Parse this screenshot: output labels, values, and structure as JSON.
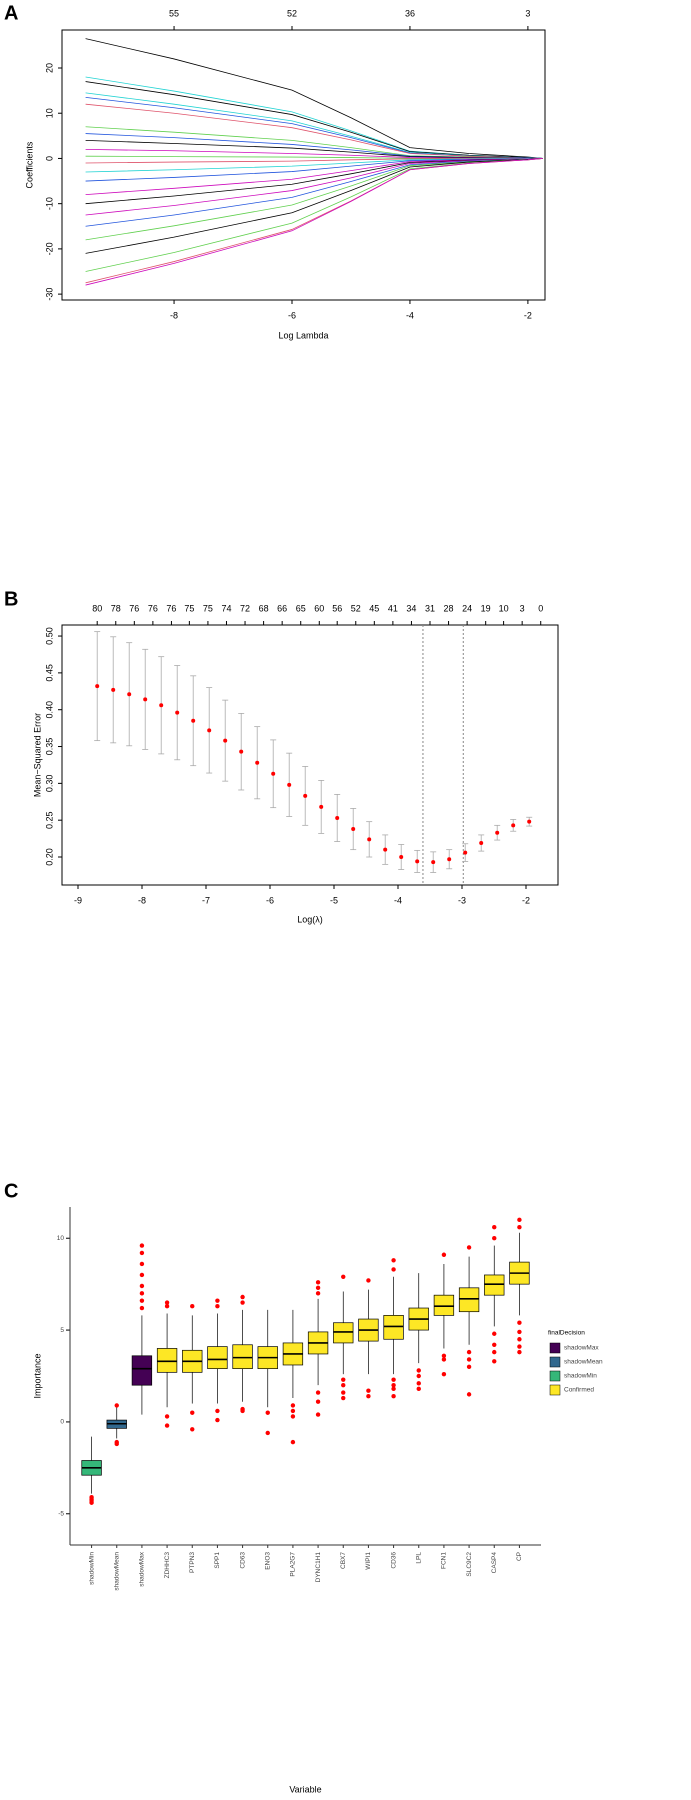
{
  "chart_data": [
    {
      "panel": "A",
      "type": "line",
      "xlabel": "Log Lambda",
      "ylabel": "Coefficients",
      "x": [
        -9.5,
        -8,
        -6,
        -5,
        -4,
        -3,
        -2,
        -1.75
      ],
      "xlim": [
        -9.9,
        -1.71
      ],
      "xticks": [
        -8,
        -6,
        -4,
        -2
      ],
      "x2ticks": [
        {
          "value": -8,
          "label": "55"
        },
        {
          "value": -6,
          "label": "52"
        },
        {
          "value": -4,
          "label": "36"
        },
        {
          "value": -2,
          "label": "3"
        }
      ],
      "ylim": [
        -31.3,
        28.4
      ],
      "yticks": [
        -30,
        -20,
        -10,
        0,
        10,
        20
      ],
      "series": [
        {
          "color": "#000000",
          "values": [
            26.5,
            22,
            15.1,
            9,
            2.4,
            1.1,
            0.3,
            0
          ]
        },
        {
          "color": "#22d3d3",
          "values": [
            18,
            14.9,
            10.3,
            6.1,
            1.6,
            0.7,
            0.2,
            0
          ]
        },
        {
          "color": "#000000",
          "values": [
            17,
            14.1,
            9.7,
            5.8,
            1.5,
            0.7,
            0.2,
            0
          ]
        },
        {
          "color": "#22d3d3",
          "values": [
            14.5,
            12,
            8.3,
            4.9,
            1.3,
            0.6,
            0.1,
            0
          ]
        },
        {
          "color": "#2255dd",
          "values": [
            13.5,
            11.2,
            7.7,
            4.6,
            1.2,
            0.5,
            0.1,
            0
          ]
        },
        {
          "color": "#df536b",
          "values": [
            12,
            10,
            6.8,
            4.1,
            1.1,
            0.5,
            0.1,
            0
          ]
        },
        {
          "color": "#61d04f",
          "values": [
            7,
            5.8,
            4,
            2.4,
            0.6,
            0.3,
            0.1,
            0
          ]
        },
        {
          "color": "#2255dd",
          "values": [
            5.5,
            4.6,
            3.1,
            1.9,
            0.5,
            0.2,
            0.1,
            0
          ]
        },
        {
          "color": "#000000",
          "values": [
            4,
            3.3,
            2.3,
            1.4,
            0.4,
            0.2,
            0,
            0
          ]
        },
        {
          "color": "#cd0bbc",
          "values": [
            2,
            1.7,
            1.1,
            0.7,
            0.2,
            0.1,
            0,
            0
          ]
        },
        {
          "color": "#61d04f",
          "values": [
            0.5,
            0.4,
            0.3,
            0.2,
            0,
            0,
            0,
            0
          ]
        },
        {
          "color": "#df536b",
          "values": [
            -1,
            -0.8,
            -0.6,
            -0.3,
            -0.1,
            0,
            0,
            0
          ]
        },
        {
          "color": "#22d3d3",
          "values": [
            -3,
            -2.5,
            -1.7,
            -1,
            -0.3,
            -0.1,
            0,
            0
          ]
        },
        {
          "color": "#2255dd",
          "values": [
            -5,
            -4.2,
            -2.9,
            -1.7,
            -0.5,
            -0.2,
            -0.1,
            0
          ]
        },
        {
          "color": "#cd0bbc",
          "values": [
            -8,
            -6.6,
            -4.6,
            -2.7,
            -0.7,
            -0.3,
            -0.1,
            0
          ]
        },
        {
          "color": "#000000",
          "values": [
            -10,
            -8.3,
            -5.7,
            -3.4,
            -0.9,
            -0.4,
            -0.1,
            0
          ]
        },
        {
          "color": "#cd0bbc",
          "values": [
            -12.5,
            -10.4,
            -7.1,
            -4.3,
            -1.1,
            -0.5,
            -0.1,
            0
          ]
        },
        {
          "color": "#2255dd",
          "values": [
            -15,
            -12.5,
            -8.6,
            -5.1,
            -1.4,
            -0.6,
            -0.2,
            0
          ]
        },
        {
          "color": "#61d04f",
          "values": [
            -18,
            -14.9,
            -10.3,
            -6.1,
            -1.6,
            -0.7,
            -0.2,
            0
          ]
        },
        {
          "color": "#000000",
          "values": [
            -21,
            -17.4,
            -12,
            -7.1,
            -1.9,
            -0.8,
            -0.2,
            0
          ]
        },
        {
          "color": "#61d04f",
          "values": [
            -25,
            -20.8,
            -14.3,
            -8.5,
            -2.3,
            -1,
            -0.3,
            0
          ]
        },
        {
          "color": "#df536b",
          "values": [
            -27.5,
            -22.8,
            -15.7,
            -9.4,
            -2.5,
            -1.1,
            -0.3,
            0
          ]
        },
        {
          "color": "#cd0bbc",
          "values": [
            -28,
            -23.2,
            -16,
            -9.5,
            -2.5,
            -1.1,
            -0.3,
            0
          ]
        }
      ]
    },
    {
      "panel": "B",
      "type": "errorbar",
      "xlabel": "Log(λ)",
      "ylabel": "Mean−Squared Error",
      "color": "#ff0000",
      "error_color": "#aaaaaa",
      "x": [
        -8.7,
        -8.45,
        -8.2,
        -7.95,
        -7.7,
        -7.45,
        -7.2,
        -6.95,
        -6.7,
        -6.45,
        -6.2,
        -5.95,
        -5.7,
        -5.45,
        -5.2,
        -4.95,
        -4.7,
        -4.45,
        -4.2,
        -3.95,
        -3.7,
        -3.45,
        -3.2,
        -2.95,
        -2.7,
        -2.45,
        -2.2,
        -1.95
      ],
      "values": [
        0.432,
        0.427,
        0.421,
        0.414,
        0.406,
        0.396,
        0.385,
        0.372,
        0.358,
        0.343,
        0.328,
        0.313,
        0.298,
        0.283,
        0.268,
        0.253,
        0.238,
        0.224,
        0.21,
        0.2,
        0.194,
        0.193,
        0.197,
        0.206,
        0.219,
        0.233,
        0.243,
        0.248
      ],
      "errors": [
        0.074,
        0.072,
        0.07,
        0.068,
        0.066,
        0.064,
        0.061,
        0.058,
        0.055,
        0.052,
        0.049,
        0.046,
        0.043,
        0.04,
        0.036,
        0.032,
        0.028,
        0.024,
        0.02,
        0.017,
        0.015,
        0.014,
        0.013,
        0.012,
        0.011,
        0.01,
        0.008,
        0.006
      ],
      "vlines": [
        -3.61,
        -2.98
      ],
      "xlim": [
        -9.25,
        -1.5
      ],
      "xticks": [
        -9,
        -8,
        -7,
        -6,
        -5,
        -4,
        -3,
        -2
      ],
      "x2ticks": [
        {
          "value": -8.7,
          "label": "80"
        },
        {
          "value": -8.41,
          "label": "78"
        },
        {
          "value": -8.12,
          "label": "76"
        },
        {
          "value": -7.83,
          "label": "76"
        },
        {
          "value": -7.54,
          "label": "76"
        },
        {
          "value": -7.26,
          "label": "75"
        },
        {
          "value": -6.97,
          "label": "75"
        },
        {
          "value": -6.68,
          "label": "74"
        },
        {
          "value": -6.39,
          "label": "72"
        },
        {
          "value": -6.1,
          "label": "68"
        },
        {
          "value": -5.81,
          "label": "66"
        },
        {
          "value": -5.52,
          "label": "65"
        },
        {
          "value": -5.23,
          "label": "60"
        },
        {
          "value": -4.95,
          "label": "56"
        },
        {
          "value": -4.66,
          "label": "52"
        },
        {
          "value": -4.37,
          "label": "45"
        },
        {
          "value": -4.08,
          "label": "41"
        },
        {
          "value": -3.79,
          "label": "34"
        },
        {
          "value": -3.5,
          "label": "31"
        },
        {
          "value": -3.21,
          "label": "28"
        },
        {
          "value": -2.92,
          "label": "24"
        },
        {
          "value": -2.63,
          "label": "19"
        },
        {
          "value": -2.35,
          "label": "10"
        },
        {
          "value": -2.06,
          "label": "3"
        },
        {
          "value": -1.77,
          "label": "0"
        }
      ],
      "ylim": [
        0.162,
        0.515
      ],
      "yticks": [
        {
          "value": 0.2,
          "label": "0.20"
        },
        0.25,
        {
          "value": 0.3,
          "label": "0.30"
        },
        0.35,
        {
          "value": 0.4,
          "label": "0.40"
        },
        0.45,
        {
          "value": 0.5,
          "label": "0.50"
        }
      ]
    },
    {
      "panel": "C",
      "type": "box",
      "xlabel": "Variable",
      "ylabel": "Importance",
      "outlier_color": "#ff0000",
      "ylim": [
        -6.7,
        11.7
      ],
      "yticks": [
        -5,
        0,
        5,
        10
      ],
      "categories": [
        "shadowMin",
        "shadowMean",
        "shadowMax",
        "ZDHHC3",
        "PTPN3",
        "SPP1",
        "CD63",
        "ENO3",
        "PLA2G7",
        "DYNC1H1",
        "CBX7",
        "WIPI1",
        "CD36",
        "LPL",
        "FCN1",
        "SLC9C2",
        "CASP4",
        "CP"
      ],
      "box_colors": [
        "#35b779",
        "#31688e",
        "#440154",
        "#fde725",
        "#fde725",
        "#fde725",
        "#fde725",
        "#fde725",
        "#fde725",
        "#fde725",
        "#fde725",
        "#fde725",
        "#fde725",
        "#fde725",
        "#fde725",
        "#fde725",
        "#fde725",
        "#fde725"
      ],
      "boxes": [
        {
          "min": -3.9,
          "q1": -2.9,
          "median": -2.5,
          "q3": -2.1,
          "max": -0.8,
          "outliers": [
            -4.1,
            -4.2,
            -4.3,
            -4.4
          ]
        },
        {
          "min": -0.9,
          "q1": -0.35,
          "median": -0.1,
          "q3": 0.1,
          "max": 0.8,
          "outliers": [
            -1.1,
            -1.2,
            0.9
          ]
        },
        {
          "min": 0.4,
          "q1": 2.0,
          "median": 2.9,
          "q3": 3.6,
          "max": 5.8,
          "outliers": [
            6.2,
            6.6,
            7.0,
            7.4,
            8.0,
            8.6,
            9.2,
            9.6
          ]
        },
        {
          "min": 0.8,
          "q1": 2.7,
          "median": 3.3,
          "q3": 4.0,
          "max": 5.9,
          "outliers": [
            0.3,
            -0.2,
            6.3,
            6.5
          ]
        },
        {
          "min": 1.0,
          "q1": 2.7,
          "median": 3.3,
          "q3": 3.9,
          "max": 5.8,
          "outliers": [
            0.5,
            -0.4,
            6.3
          ]
        },
        {
          "min": 1.0,
          "q1": 2.9,
          "median": 3.4,
          "q3": 4.1,
          "max": 5.9,
          "outliers": [
            0.6,
            0.1,
            6.3,
            6.6
          ]
        },
        {
          "min": 1.1,
          "q1": 2.9,
          "median": 3.5,
          "q3": 4.2,
          "max": 6.1,
          "outliers": [
            0.7,
            0.6,
            6.5,
            6.8
          ]
        },
        {
          "min": 0.8,
          "q1": 2.9,
          "median": 3.5,
          "q3": 4.1,
          "max": 6.1,
          "outliers": [
            0.5,
            -0.6
          ]
        },
        {
          "min": 1.3,
          "q1": 3.1,
          "median": 3.7,
          "q3": 4.3,
          "max": 6.1,
          "outliers": [
            0.9,
            0.6,
            0.3,
            -1.1
          ]
        },
        {
          "min": 2.0,
          "q1": 3.7,
          "median": 4.3,
          "q3": 4.9,
          "max": 6.7,
          "outliers": [
            1.6,
            1.1,
            0.4,
            7.0,
            7.3,
            7.6
          ]
        },
        {
          "min": 2.6,
          "q1": 4.3,
          "median": 4.9,
          "q3": 5.4,
          "max": 7.1,
          "outliers": [
            2.3,
            2.0,
            1.6,
            1.3,
            7.9
          ]
        },
        {
          "min": 2.6,
          "q1": 4.4,
          "median": 5.0,
          "q3": 5.6,
          "max": 7.2,
          "outliers": [
            1.7,
            1.4,
            7.7
          ]
        },
        {
          "min": 2.6,
          "q1": 4.5,
          "median": 5.2,
          "q3": 5.8,
          "max": 7.9,
          "outliers": [
            2.3,
            2.0,
            1.8,
            1.4,
            8.3,
            8.8
          ]
        },
        {
          "min": 3.2,
          "q1": 5.0,
          "median": 5.6,
          "q3": 6.2,
          "max": 8.1,
          "outliers": [
            2.8,
            2.5,
            2.1,
            1.8
          ]
        },
        {
          "min": 4.0,
          "q1": 5.8,
          "median": 6.3,
          "q3": 6.9,
          "max": 8.6,
          "outliers": [
            3.6,
            3.4,
            2.6,
            9.1
          ]
        },
        {
          "min": 4.2,
          "q1": 6.0,
          "median": 6.7,
          "q3": 7.3,
          "max": 9.0,
          "outliers": [
            3.8,
            3.4,
            3.0,
            1.5,
            9.5
          ]
        },
        {
          "min": 5.2,
          "q1": 6.9,
          "median": 7.5,
          "q3": 8.0,
          "max": 9.6,
          "outliers": [
            4.8,
            4.2,
            3.8,
            3.3,
            10.0,
            10.6
          ]
        },
        {
          "min": 5.8,
          "q1": 7.5,
          "median": 8.1,
          "q3": 8.7,
          "max": 10.3,
          "outliers": [
            5.4,
            4.9,
            4.5,
            4.1,
            3.8,
            10.6,
            11.0
          ]
        }
      ],
      "legend": {
        "title": "finalDecision",
        "entries": [
          {
            "name": "shadowMax",
            "color": "#440154"
          },
          {
            "name": "shadowMean",
            "color": "#31688e"
          },
          {
            "name": "shadowMin",
            "color": "#35b779"
          },
          {
            "name": "Confirmed",
            "color": "#fde725"
          }
        ]
      }
    }
  ]
}
